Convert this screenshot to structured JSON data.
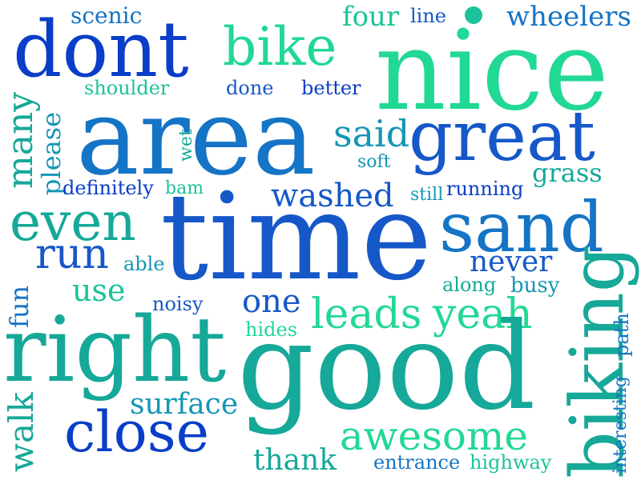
{
  "colors": {
    "deep_blue": "#0a3ec8",
    "blue": "#1658c8",
    "mid_blue": "#1574c6",
    "teal_blue": "#1596b4",
    "teal": "#16a898",
    "green_teal": "#1cc39a",
    "mint": "#22d895",
    "background": "#ffffff"
  },
  "words": [
    "scenic",
    "four",
    "line",
    "wheelers",
    "dont",
    "bike",
    "nice",
    "shoulder",
    "done",
    "better",
    "area",
    "great",
    "said",
    "soft",
    "many",
    "please",
    "wet",
    "definitely",
    "bam",
    "washed",
    "still",
    "running",
    "grass",
    "even",
    "time",
    "sand",
    "run",
    "able",
    "never",
    "use",
    "along",
    "busy",
    "fun",
    "noisy",
    "one",
    "leads",
    "yeah",
    "right",
    "hides",
    "good",
    "biking",
    "interesting",
    "path",
    "surface",
    "walk",
    "close",
    "awesome",
    "thank",
    "entrance",
    "highway"
  ]
}
